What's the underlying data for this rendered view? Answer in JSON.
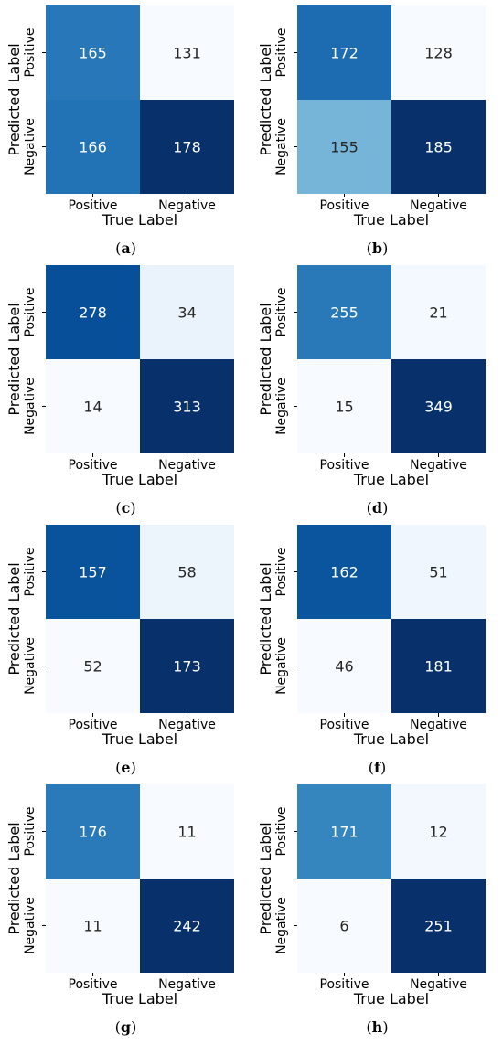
{
  "chart_data": [
    {
      "type": "heatmap",
      "panel_label": "(a)",
      "xlabel": "True Label",
      "ylabel": "Predicted Label",
      "x_ticks": [
        "Positive",
        "Negative"
      ],
      "y_ticks": [
        "Positive",
        "Negative"
      ],
      "cells": [
        [
          165,
          131
        ],
        [
          166,
          178
        ]
      ],
      "colormap": "Blues",
      "colorbar": false
    },
    {
      "type": "heatmap",
      "panel_label": "(b)",
      "xlabel": "True Label",
      "ylabel": "Predicted Label",
      "x_ticks": [
        "Positive",
        "Negative"
      ],
      "y_ticks": [
        "Positive",
        "Negative"
      ],
      "cells": [
        [
          172,
          128
        ],
        [
          155,
          185
        ]
      ],
      "colormap": "Blues",
      "colorbar": false
    },
    {
      "type": "heatmap",
      "panel_label": "(c)",
      "xlabel": "True Label",
      "ylabel": "Predicted Label",
      "x_ticks": [
        "Positive",
        "Negative"
      ],
      "y_ticks": [
        "Positive",
        "Negative"
      ],
      "cells": [
        [
          278,
          34
        ],
        [
          14,
          313
        ]
      ],
      "colormap": "Blues",
      "colorbar": false
    },
    {
      "type": "heatmap",
      "panel_label": "(d)",
      "xlabel": "True Label",
      "ylabel": "Predicted Label",
      "x_ticks": [
        "Positive",
        "Negative"
      ],
      "y_ticks": [
        "Positive",
        "Negative"
      ],
      "cells": [
        [
          255,
          21
        ],
        [
          15,
          349
        ]
      ],
      "colormap": "Blues",
      "colorbar": false
    },
    {
      "type": "heatmap",
      "panel_label": "(e)",
      "xlabel": "True Label",
      "ylabel": "Predicted Label",
      "x_ticks": [
        "Positive",
        "Negative"
      ],
      "y_ticks": [
        "Positive",
        "Negative"
      ],
      "cells": [
        [
          157,
          58
        ],
        [
          52,
          173
        ]
      ],
      "colormap": "Blues",
      "colorbar": false
    },
    {
      "type": "heatmap",
      "panel_label": "(f)",
      "xlabel": "True Label",
      "ylabel": "Predicted Label",
      "x_ticks": [
        "Positive",
        "Negative"
      ],
      "y_ticks": [
        "Positive",
        "Negative"
      ],
      "cells": [
        [
          162,
          51
        ],
        [
          46,
          181
        ]
      ],
      "colormap": "Blues",
      "colorbar": false
    },
    {
      "type": "heatmap",
      "panel_label": "(g)",
      "xlabel": "True Label",
      "ylabel": "Predicted Label",
      "x_ticks": [
        "Positive",
        "Negative"
      ],
      "y_ticks": [
        "Positive",
        "Negative"
      ],
      "cells": [
        [
          176,
          11
        ],
        [
          11,
          242
        ]
      ],
      "colormap": "Blues",
      "colorbar": false
    },
    {
      "type": "heatmap",
      "panel_label": "(h)",
      "xlabel": "True Label",
      "ylabel": "Predicted Label",
      "x_ticks": [
        "Positive",
        "Negative"
      ],
      "y_ticks": [
        "Positive",
        "Negative"
      ],
      "cells": [
        [
          171,
          12
        ],
        [
          6,
          251
        ]
      ],
      "colormap": "Blues",
      "colorbar": false
    }
  ]
}
